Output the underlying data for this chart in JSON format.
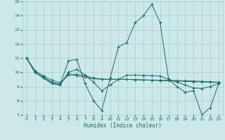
{
  "xlabel": "Humidex (Indice chaleur)",
  "xlim": [
    -0.5,
    23.5
  ],
  "ylim": [
    7,
    15
  ],
  "yticks": [
    7,
    8,
    9,
    10,
    11,
    12,
    13,
    14,
    15
  ],
  "xticks": [
    0,
    1,
    2,
    3,
    4,
    5,
    6,
    7,
    8,
    9,
    10,
    11,
    12,
    13,
    14,
    15,
    16,
    17,
    18,
    19,
    20,
    21,
    22,
    23
  ],
  "bg_color": "#cce8e8",
  "grid_color": "#aacccc",
  "line_color": "#1a6b6b",
  "series": [
    [
      11.0,
      10.0,
      9.6,
      9.2,
      9.1,
      10.8,
      10.9,
      9.2,
      8.0,
      7.3,
      9.6,
      11.8,
      12.1,
      13.5,
      14.0,
      14.8,
      13.5,
      9.5,
      9.0,
      8.6,
      8.7,
      7.0,
      7.5,
      9.2
    ],
    [
      11.0,
      10.0,
      9.65,
      9.3,
      9.15,
      9.9,
      9.75,
      9.65,
      9.55,
      9.5,
      9.5,
      9.5,
      9.5,
      9.48,
      9.46,
      9.44,
      9.42,
      9.4,
      9.38,
      9.36,
      9.34,
      9.32,
      9.3,
      9.28
    ],
    [
      11.0,
      10.1,
      9.75,
      9.45,
      9.25,
      9.8,
      9.85,
      9.75,
      9.6,
      9.52,
      9.5,
      9.5,
      9.5,
      9.48,
      9.46,
      9.45,
      9.44,
      9.43,
      9.41,
      9.4,
      9.38,
      9.35,
      9.33,
      9.3
    ],
    [
      11.0,
      10.0,
      9.6,
      9.3,
      9.1,
      10.0,
      10.2,
      9.8,
      9.3,
      8.7,
      9.1,
      9.5,
      9.8,
      9.8,
      9.78,
      9.76,
      9.74,
      9.5,
      9.3,
      9.1,
      8.9,
      8.85,
      9.0,
      9.2
    ]
  ]
}
